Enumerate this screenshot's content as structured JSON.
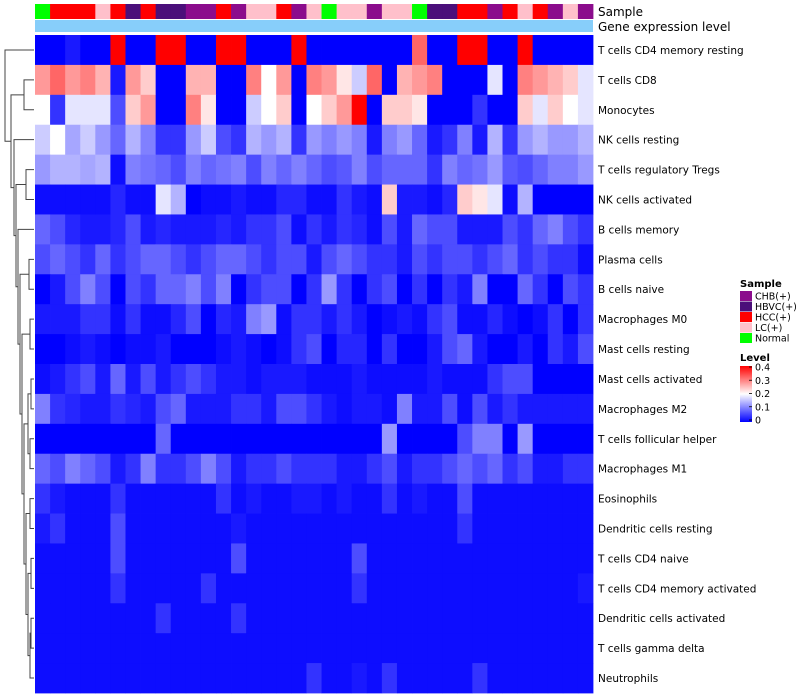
{
  "chart_data": {
    "type": "heatmap",
    "title": "",
    "annotation_labels": {
      "sample": "Sample",
      "gene": "Gene expression level"
    },
    "rows": [
      "T cells CD4 memory resting",
      "T cells CD8",
      "Monocytes",
      "NK cells resting",
      "T cells regulatory  Tregs",
      "NK cells activated",
      "B cells memory",
      "Plasma cells",
      "B cells naive",
      "Macrophages M0",
      "Mast cells resting",
      "Mast cells activated",
      "Macrophages M2",
      "T cells follicular helper",
      "Macrophages M1",
      "Eosinophils",
      "Dendritic cells resting",
      "T cells CD4 naive",
      "T cells CD4 memory activated",
      "Dendritic cells activated",
      "T cells gamma delta",
      "Neutrophils"
    ],
    "sample_groups": [
      "Normal",
      "HCC(+)",
      "HCC(+)",
      "HCC(+)",
      "LC(+)",
      "HCC(+)",
      "HBVC(+)",
      "HCC(+)",
      "HBVC(+)",
      "HBVC(+)",
      "CHB(+)",
      "CHB(+)",
      "HCC(+)",
      "CHB(+)",
      "LC(+)",
      "LC(+)",
      "HCC(+)",
      "CHB(+)",
      "LC(+)",
      "Normal",
      "LC(+)",
      "LC(+)",
      "CHB(+)",
      "LC(+)",
      "LC(+)",
      "Normal",
      "HBVC(+)",
      "HBVC(+)",
      "HCC(+)",
      "HCC(+)",
      "CHB(+)",
      "HCC(+)",
      "LC(+)",
      "HCC(+)",
      "CHB(+)",
      "LC(+)",
      "CHB(+)"
    ],
    "legend": {
      "sample_title": "Sample",
      "sample_categories": [
        {
          "name": "CHB(+)",
          "color": "#8B0C8C"
        },
        {
          "name": "HBVC(+)",
          "color": "#4B0F7A"
        },
        {
          "name": "HCC(+)",
          "color": "#FF0000"
        },
        {
          "name": "LC(+)",
          "color": "#FFC0CB"
        },
        {
          "name": "Normal",
          "color": "#00FF00"
        }
      ],
      "level_title": "Level",
      "level_ticks": [
        "0.4",
        "0.3",
        "0.2",
        "0.1",
        "0"
      ],
      "level_range": [
        0,
        0.4
      ]
    },
    "gene_bar_color": "#87CEFA",
    "dendrogram_color": "#444444",
    "values": [
      [
        0.0,
        0.0,
        0.02,
        0.0,
        0.0,
        0.4,
        0.0,
        0.0,
        0.4,
        0.4,
        0.0,
        0.0,
        0.4,
        0.4,
        0.0,
        0.0,
        0.0,
        0.4,
        0.0,
        0.0,
        0.0,
        0.0,
        0.0,
        0.0,
        0.0,
        0.32,
        0.0,
        0.0,
        0.4,
        0.4,
        0.0,
        0.0,
        0.4,
        0.0,
        0.0,
        0.0,
        0.0
      ],
      [
        0.28,
        0.32,
        0.28,
        0.3,
        0.26,
        0.02,
        0.28,
        0.24,
        0.0,
        0.0,
        0.26,
        0.26,
        0.0,
        0.0,
        0.3,
        0.2,
        0.28,
        0.0,
        0.3,
        0.28,
        0.22,
        0.16,
        0.32,
        0.0,
        0.26,
        0.28,
        0.3,
        0.0,
        0.0,
        0.0,
        0.18,
        0.0,
        0.3,
        0.28,
        0.26,
        0.24,
        0.18
      ],
      [
        0.2,
        0.04,
        0.18,
        0.18,
        0.18,
        0.06,
        0.24,
        0.28,
        0.0,
        0.0,
        0.3,
        0.22,
        0.0,
        0.0,
        0.16,
        0.2,
        0.24,
        0.0,
        0.2,
        0.24,
        0.28,
        0.4,
        0.0,
        0.24,
        0.24,
        0.22,
        0.0,
        0.0,
        0.0,
        0.04,
        0.0,
        0.0,
        0.24,
        0.18,
        0.24,
        0.2,
        0.18
      ],
      [
        0.16,
        0.2,
        0.13,
        0.16,
        0.12,
        0.08,
        0.14,
        0.1,
        0.04,
        0.04,
        0.12,
        0.16,
        0.06,
        0.04,
        0.14,
        0.12,
        0.14,
        0.04,
        0.12,
        0.1,
        0.12,
        0.1,
        0.02,
        0.1,
        0.12,
        0.08,
        0.02,
        0.04,
        0.1,
        0.02,
        0.14,
        0.04,
        0.12,
        0.14,
        0.12,
        0.12,
        0.14
      ],
      [
        0.12,
        0.14,
        0.14,
        0.13,
        0.14,
        0.01,
        0.1,
        0.09,
        0.08,
        0.06,
        0.1,
        0.08,
        0.09,
        0.1,
        0.06,
        0.1,
        0.08,
        0.1,
        0.08,
        0.06,
        0.07,
        0.1,
        0.06,
        0.08,
        0.08,
        0.08,
        0.04,
        0.1,
        0.08,
        0.09,
        0.12,
        0.07,
        0.06,
        0.08,
        0.1,
        0.1,
        0.12
      ],
      [
        0.01,
        0.01,
        0.01,
        0.01,
        0.01,
        0.03,
        0.01,
        0.01,
        0.18,
        0.14,
        0.0,
        0.01,
        0.01,
        0.02,
        0.01,
        0.01,
        0.03,
        0.03,
        0.01,
        0.01,
        0.04,
        0.02,
        0.01,
        0.24,
        0.02,
        0.02,
        0.01,
        0.03,
        0.24,
        0.22,
        0.18,
        0.01,
        0.14,
        0.0,
        0.0,
        0.0,
        0.0
      ],
      [
        0.08,
        0.06,
        0.03,
        0.02,
        0.02,
        0.03,
        0.06,
        0.02,
        0.03,
        0.02,
        0.02,
        0.02,
        0.03,
        0.02,
        0.04,
        0.04,
        0.06,
        0.01,
        0.04,
        0.02,
        0.04,
        0.03,
        0.01,
        0.06,
        0.02,
        0.08,
        0.06,
        0.06,
        0.02,
        0.02,
        0.02,
        0.06,
        0.04,
        0.08,
        0.1,
        0.06,
        0.04
      ],
      [
        0.06,
        0.08,
        0.06,
        0.04,
        0.08,
        0.04,
        0.06,
        0.08,
        0.08,
        0.06,
        0.04,
        0.06,
        0.08,
        0.08,
        0.06,
        0.04,
        0.06,
        0.06,
        0.02,
        0.06,
        0.08,
        0.06,
        0.04,
        0.04,
        0.02,
        0.06,
        0.04,
        0.06,
        0.06,
        0.04,
        0.06,
        0.08,
        0.04,
        0.06,
        0.04,
        0.04,
        0.01
      ],
      [
        0.0,
        0.02,
        0.06,
        0.1,
        0.06,
        0.0,
        0.06,
        0.04,
        0.08,
        0.08,
        0.1,
        0.06,
        0.1,
        0.0,
        0.04,
        0.06,
        0.06,
        0.0,
        0.04,
        0.12,
        0.04,
        0.0,
        0.04,
        0.06,
        0.0,
        0.04,
        0.0,
        0.04,
        0.02,
        0.1,
        0.0,
        0.0,
        0.08,
        0.04,
        0.0,
        0.06,
        0.04
      ],
      [
        0.02,
        0.02,
        0.02,
        0.04,
        0.04,
        0.01,
        0.04,
        0.01,
        0.01,
        0.03,
        0.06,
        0.0,
        0.03,
        0.02,
        0.1,
        0.12,
        0.01,
        0.04,
        0.04,
        0.02,
        0.04,
        0.02,
        0.0,
        0.01,
        0.02,
        0.01,
        0.04,
        0.06,
        0.01,
        0.01,
        0.03,
        0.01,
        0.0,
        0.01,
        0.04,
        0.0,
        0.04
      ],
      [
        0.0,
        0.0,
        0.01,
        0.02,
        0.01,
        0.0,
        0.01,
        0.01,
        0.02,
        0.0,
        0.0,
        0.0,
        0.01,
        0.02,
        0.01,
        0.0,
        0.01,
        0.04,
        0.06,
        0.0,
        0.03,
        0.03,
        0.0,
        0.04,
        0.0,
        0.0,
        0.02,
        0.06,
        0.08,
        0.02,
        0.0,
        0.0,
        0.02,
        0.0,
        0.04,
        0.02,
        0.06
      ],
      [
        0.01,
        0.02,
        0.04,
        0.06,
        0.02,
        0.08,
        0.02,
        0.06,
        0.02,
        0.04,
        0.06,
        0.04,
        0.02,
        0.02,
        0.01,
        0.02,
        0.02,
        0.02,
        0.01,
        0.01,
        0.01,
        0.02,
        0.01,
        0.01,
        0.01,
        0.01,
        0.02,
        0.01,
        0.01,
        0.01,
        0.04,
        0.06,
        0.06,
        0.0,
        0.0,
        0.0,
        0.0
      ],
      [
        0.1,
        0.04,
        0.03,
        0.02,
        0.02,
        0.04,
        0.03,
        0.02,
        0.06,
        0.08,
        0.02,
        0.02,
        0.02,
        0.04,
        0.04,
        0.02,
        0.06,
        0.06,
        0.04,
        0.02,
        0.01,
        0.02,
        0.02,
        0.01,
        0.1,
        0.02,
        0.02,
        0.06,
        0.01,
        0.06,
        0.02,
        0.04,
        0.02,
        0.02,
        0.02,
        0.02,
        0.02
      ],
      [
        0.0,
        0.0,
        0.0,
        0.0,
        0.0,
        0.0,
        0.0,
        0.0,
        0.08,
        0.0,
        0.0,
        0.0,
        0.0,
        0.0,
        0.0,
        0.0,
        0.0,
        0.0,
        0.0,
        0.0,
        0.0,
        0.0,
        0.0,
        0.12,
        0.0,
        0.0,
        0.0,
        0.0,
        0.06,
        0.1,
        0.1,
        0.0,
        0.12,
        0.0,
        0.0,
        0.0,
        0.0
      ],
      [
        0.08,
        0.06,
        0.1,
        0.08,
        0.06,
        0.02,
        0.04,
        0.1,
        0.04,
        0.04,
        0.06,
        0.1,
        0.06,
        0.02,
        0.04,
        0.04,
        0.06,
        0.04,
        0.04,
        0.04,
        0.02,
        0.02,
        0.04,
        0.06,
        0.02,
        0.04,
        0.04,
        0.06,
        0.08,
        0.06,
        0.08,
        0.04,
        0.06,
        0.02,
        0.02,
        0.04,
        0.04
      ],
      [
        0.04,
        0.02,
        0.01,
        0.01,
        0.01,
        0.04,
        0.01,
        0.01,
        0.01,
        0.01,
        0.01,
        0.01,
        0.04,
        0.01,
        0.02,
        0.01,
        0.01,
        0.02,
        0.02,
        0.01,
        0.02,
        0.01,
        0.01,
        0.04,
        0.01,
        0.02,
        0.01,
        0.01,
        0.06,
        0.01,
        0.01,
        0.01,
        0.01,
        0.01,
        0.01,
        0.01,
        0.01
      ],
      [
        0.02,
        0.04,
        0.01,
        0.01,
        0.01,
        0.06,
        0.01,
        0.01,
        0.01,
        0.01,
        0.01,
        0.01,
        0.01,
        0.02,
        0.01,
        0.01,
        0.01,
        0.01,
        0.01,
        0.01,
        0.01,
        0.01,
        0.01,
        0.01,
        0.01,
        0.01,
        0.01,
        0.01,
        0.04,
        0.01,
        0.01,
        0.01,
        0.01,
        0.01,
        0.01,
        0.01,
        0.01
      ],
      [
        0.01,
        0.01,
        0.01,
        0.01,
        0.01,
        0.06,
        0.01,
        0.01,
        0.01,
        0.01,
        0.01,
        0.01,
        0.01,
        0.06,
        0.01,
        0.01,
        0.01,
        0.01,
        0.01,
        0.01,
        0.01,
        0.06,
        0.01,
        0.01,
        0.01,
        0.01,
        0.01,
        0.01,
        0.01,
        0.01,
        0.01,
        0.01,
        0.01,
        0.01,
        0.01,
        0.01,
        0.01
      ],
      [
        0.01,
        0.01,
        0.01,
        0.01,
        0.01,
        0.04,
        0.01,
        0.01,
        0.01,
        0.01,
        0.01,
        0.04,
        0.01,
        0.01,
        0.01,
        0.01,
        0.01,
        0.01,
        0.01,
        0.01,
        0.01,
        0.04,
        0.01,
        0.01,
        0.01,
        0.01,
        0.01,
        0.01,
        0.01,
        0.01,
        0.01,
        0.01,
        0.01,
        0.01,
        0.01,
        0.01,
        0.02
      ],
      [
        0.01,
        0.01,
        0.01,
        0.01,
        0.01,
        0.01,
        0.01,
        0.01,
        0.04,
        0.01,
        0.01,
        0.01,
        0.01,
        0.04,
        0.01,
        0.01,
        0.01,
        0.01,
        0.01,
        0.01,
        0.01,
        0.01,
        0.01,
        0.01,
        0.01,
        0.01,
        0.01,
        0.01,
        0.01,
        0.01,
        0.01,
        0.01,
        0.01,
        0.01,
        0.01,
        0.01,
        0.01
      ],
      [
        0.01,
        0.01,
        0.01,
        0.01,
        0.01,
        0.01,
        0.01,
        0.01,
        0.01,
        0.01,
        0.01,
        0.01,
        0.01,
        0.01,
        0.01,
        0.01,
        0.01,
        0.01,
        0.01,
        0.01,
        0.01,
        0.01,
        0.01,
        0.01,
        0.01,
        0.01,
        0.01,
        0.01,
        0.01,
        0.01,
        0.01,
        0.01,
        0.01,
        0.01,
        0.01,
        0.01,
        0.01
      ],
      [
        0.01,
        0.01,
        0.01,
        0.01,
        0.01,
        0.01,
        0.01,
        0.01,
        0.01,
        0.01,
        0.01,
        0.01,
        0.01,
        0.01,
        0.01,
        0.01,
        0.01,
        0.01,
        0.04,
        0.01,
        0.01,
        0.02,
        0.01,
        0.04,
        0.01,
        0.01,
        0.01,
        0.01,
        0.01,
        0.04,
        0.01,
        0.01,
        0.01,
        0.01,
        0.01,
        0.01,
        0.01
      ]
    ]
  }
}
